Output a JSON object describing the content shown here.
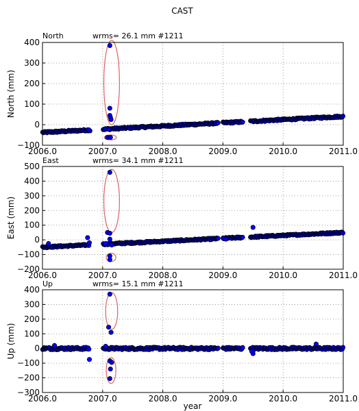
{
  "figure": {
    "suptitle": "CAST",
    "xlabel": "year"
  },
  "colors": {
    "marker_fill": "#0000ff",
    "marker_edge": "#000000",
    "ellipse": "#e06060",
    "grid": "#808080"
  },
  "chart_data": [
    {
      "type": "scatter",
      "name": "north",
      "title": "North",
      "stats": "wrms= 26.1 mm  #1211",
      "ylabel": "North (mm)",
      "xlim": [
        2006.0,
        2011.0
      ],
      "ylim": [
        -100,
        400
      ],
      "xticks": [
        "2006.0",
        "2007.0",
        "2008.0",
        "2009.0",
        "2010.0",
        "2011.0"
      ],
      "yticks": [
        "−100",
        "0",
        "100",
        "200",
        "300",
        "400"
      ],
      "grid": true,
      "trend": {
        "start": [
          2006.0,
          -38
        ],
        "end": [
          2011.0,
          40
        ],
        "noise": 4
      },
      "gaps": [
        [
          2006.78,
          2007.0
        ],
        [
          2008.92,
          2009.0
        ],
        [
          2009.33,
          2009.45
        ]
      ],
      "outliers": [
        {
          "x": 2006.79,
          "y": -30
        },
        {
          "x": 2006.77,
          "y": -25
        },
        {
          "x": 2007.05,
          "y": -20
        },
        {
          "x": 2007.1,
          "y": -22
        },
        {
          "x": 2007.12,
          "y": 385
        },
        {
          "x": 2007.12,
          "y": 80
        },
        {
          "x": 2007.12,
          "y": 45
        },
        {
          "x": 2007.13,
          "y": 35
        },
        {
          "x": 2007.14,
          "y": 25
        },
        {
          "x": 2007.08,
          "y": -62
        },
        {
          "x": 2007.13,
          "y": -62
        }
      ],
      "ellipses": [
        {
          "cx": 2007.15,
          "cy": 205,
          "rx": 0.13,
          "ry": 205
        },
        {
          "cx": 2007.13,
          "cy": -62,
          "rx": 0.1,
          "ry": 12
        }
      ]
    },
    {
      "type": "scatter",
      "name": "east",
      "title": "East",
      "stats": "wrms= 34.1 mm  #1211",
      "ylabel": "East (mm)",
      "xlim": [
        2006.0,
        2011.0
      ],
      "ylim": [
        -200,
        500
      ],
      "xticks": [
        "2006.0",
        "2007.0",
        "2008.0",
        "2009.0",
        "2010.0",
        "2011.0"
      ],
      "yticks": [
        "−200",
        "−100",
        "0",
        "100",
        "200",
        "300",
        "400",
        "500"
      ],
      "grid": true,
      "trend": {
        "start": [
          2006.0,
          -50
        ],
        "end": [
          2011.0,
          50
        ],
        "noise": 5
      },
      "gaps": [
        [
          2006.78,
          2007.0
        ],
        [
          2008.92,
          2009.0
        ],
        [
          2009.33,
          2009.45
        ]
      ],
      "outliers": [
        {
          "x": 2006.1,
          "y": -25
        },
        {
          "x": 2006.75,
          "y": 15
        },
        {
          "x": 2006.78,
          "y": -20
        },
        {
          "x": 2007.05,
          "y": -25
        },
        {
          "x": 2007.08,
          "y": 50
        },
        {
          "x": 2007.12,
          "y": 45
        },
        {
          "x": 2007.12,
          "y": 460
        },
        {
          "x": 2007.12,
          "y": 5
        },
        {
          "x": 2007.15,
          "y": -35
        },
        {
          "x": 2007.12,
          "y": -110
        },
        {
          "x": 2007.12,
          "y": -135
        },
        {
          "x": 2009.02,
          "y": 10
        },
        {
          "x": 2009.05,
          "y": 5
        },
        {
          "x": 2009.5,
          "y": 85
        }
      ],
      "ellipses": [
        {
          "cx": 2007.15,
          "cy": 265,
          "rx": 0.13,
          "ry": 215
        },
        {
          "cx": 2007.14,
          "cy": -120,
          "rx": 0.08,
          "ry": 28
        }
      ]
    },
    {
      "type": "scatter",
      "name": "up",
      "title": "Up",
      "stats": "wrms= 15.1 mm  #1211",
      "ylabel": "Up (mm)",
      "xlim": [
        2006.0,
        2011.0
      ],
      "ylim": [
        -300,
        400
      ],
      "xticks": [
        "2006.0",
        "2007.0",
        "2008.0",
        "2009.0",
        "2010.0",
        "2011.0"
      ],
      "yticks": [
        "−300",
        "−200",
        "−100",
        "0",
        "100",
        "200",
        "300",
        "400"
      ],
      "grid": true,
      "trend": {
        "start": [
          2006.0,
          0
        ],
        "end": [
          2011.0,
          0
        ],
        "noise": 8
      },
      "gaps": [
        [
          2006.78,
          2007.0
        ],
        [
          2008.92,
          2009.0
        ],
        [
          2009.33,
          2009.45
        ]
      ],
      "outliers": [
        {
          "x": 2006.2,
          "y": 20
        },
        {
          "x": 2006.78,
          "y": -75
        },
        {
          "x": 2007.05,
          "y": 15
        },
        {
          "x": 2007.1,
          "y": 145
        },
        {
          "x": 2007.12,
          "y": 370
        },
        {
          "x": 2007.14,
          "y": 110
        },
        {
          "x": 2007.12,
          "y": -85
        },
        {
          "x": 2007.13,
          "y": -140
        },
        {
          "x": 2007.12,
          "y": -205
        },
        {
          "x": 2007.15,
          "y": -95
        },
        {
          "x": 2009.5,
          "y": -35
        },
        {
          "x": 2010.55,
          "y": 30
        },
        {
          "x": 2009.48,
          "y": -20
        }
      ],
      "ellipses": [
        {
          "cx": 2007.15,
          "cy": 255,
          "rx": 0.1,
          "ry": 125
        },
        {
          "cx": 2007.14,
          "cy": -150,
          "rx": 0.08,
          "ry": 88
        }
      ]
    }
  ]
}
